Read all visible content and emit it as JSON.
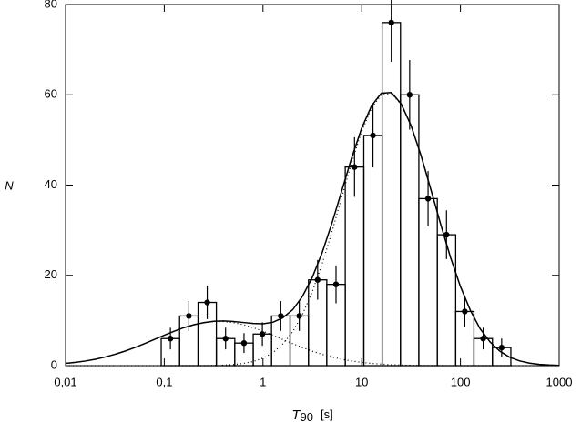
{
  "chart_data": {
    "type": "histogram",
    "x_label": {
      "symbol": "T",
      "subscript": "90",
      "unit": "[s]"
    },
    "y_label": "N",
    "log_x": true,
    "xlim": [
      0.01,
      1000
    ],
    "xticks": [
      {
        "value": 0.01,
        "label": "0,01"
      },
      {
        "value": 0.1,
        "label": "0,1"
      },
      1,
      10,
      100,
      1000
    ],
    "ylim": [
      0,
      80
    ],
    "yticks": [
      0,
      20,
      40,
      60,
      80
    ],
    "color": "#000000",
    "bins": [
      0.0931,
      0.143,
      0.22,
      0.337,
      0.518,
      0.796,
      1.22,
      1.88,
      2.89,
      4.43,
      6.81,
      10.5,
      16.1,
      24.7,
      37.9,
      58.3,
      89.5,
      137,
      211,
      324
    ],
    "counts": [
      6,
      11,
      14,
      6,
      5,
      7,
      11,
      11,
      19,
      18,
      44,
      51,
      76,
      60,
      37,
      29,
      12,
      6,
      4
    ],
    "errors": [
      2.4,
      3.3,
      3.7,
      2.4,
      2.2,
      2.6,
      3.3,
      3.3,
      4.4,
      4.2,
      6.6,
      7.1,
      8.7,
      7.7,
      6.1,
      5.4,
      3.5,
      2.4,
      2
    ],
    "curve_x": [
      0.01,
      0.0126,
      0.0158,
      0.02,
      0.0251,
      0.0316,
      0.0398,
      0.0501,
      0.0631,
      0.0794,
      0.1,
      0.126,
      0.158,
      0.2,
      0.251,
      0.316,
      0.398,
      0.501,
      0.631,
      0.794,
      1,
      1.26,
      1.58,
      2,
      2.51,
      3.16,
      3.98,
      5.01,
      6.31,
      7.94,
      10,
      12.6,
      15.8,
      20,
      25.1,
      31.6,
      39.8,
      50.1,
      63.1,
      79.4,
      100,
      126,
      158,
      200,
      251,
      316,
      398,
      501,
      631,
      794,
      1000
    ],
    "curves": [
      {
        "style": "solid",
        "values": [
          0.5,
          0.72,
          1.02,
          1.41,
          1.9,
          2.5,
          3.2,
          4.0,
          4.88,
          5.8,
          6.73,
          7.62,
          8.42,
          9.07,
          9.53,
          9.82,
          9.89,
          9.78,
          9.56,
          9.34,
          9.28,
          9.61,
          10.56,
          12.39,
          15.34,
          19.57,
          25.07,
          31.65,
          38.89,
          46.14,
          52.64,
          57.59,
          60.35,
          60.5,
          58.01,
          53.2,
          46.62,
          39.07,
          31.29,
          23.95,
          17.52,
          12.25,
          8.19,
          5.23,
          3.19,
          1.86,
          1.04,
          0.55,
          0.28,
          0.14,
          0.06
        ]
      },
      {
        "style": "dotted",
        "values": [
          0.5,
          0.72,
          1.02,
          1.41,
          1.9,
          2.5,
          3.2,
          4.0,
          4.88,
          5.8,
          6.73,
          7.62,
          8.42,
          9.07,
          9.53,
          9.77,
          9.77,
          9.53,
          9.07,
          8.42,
          7.62,
          6.73,
          5.8,
          4.88,
          4.0,
          3.2,
          2.5,
          1.9,
          1.41,
          1.02,
          0.72,
          0.5,
          0.34,
          0.22,
          0.14,
          0.09,
          0.05,
          0.03,
          0.02,
          0.01,
          0.01,
          0,
          0,
          0,
          0,
          0,
          0,
          0,
          0,
          0,
          0
        ]
      },
      {
        "style": "dotted",
        "values": [
          0,
          0,
          0,
          0,
          0,
          0,
          0,
          0,
          0,
          0,
          0,
          0,
          0,
          0,
          0,
          0.05,
          0.12,
          0.25,
          0.49,
          0.92,
          1.66,
          2.88,
          4.76,
          7.51,
          11.34,
          16.37,
          22.57,
          29.75,
          37.48,
          45.12,
          51.92,
          57.09,
          60.01,
          60.28,
          57.87,
          53.11,
          46.57,
          39.04,
          31.27,
          23.94,
          17.51,
          12.25,
          8.19,
          5.23,
          3.19,
          1.86,
          1.04,
          0.55,
          0.28,
          0.14,
          0.06
        ]
      }
    ]
  }
}
